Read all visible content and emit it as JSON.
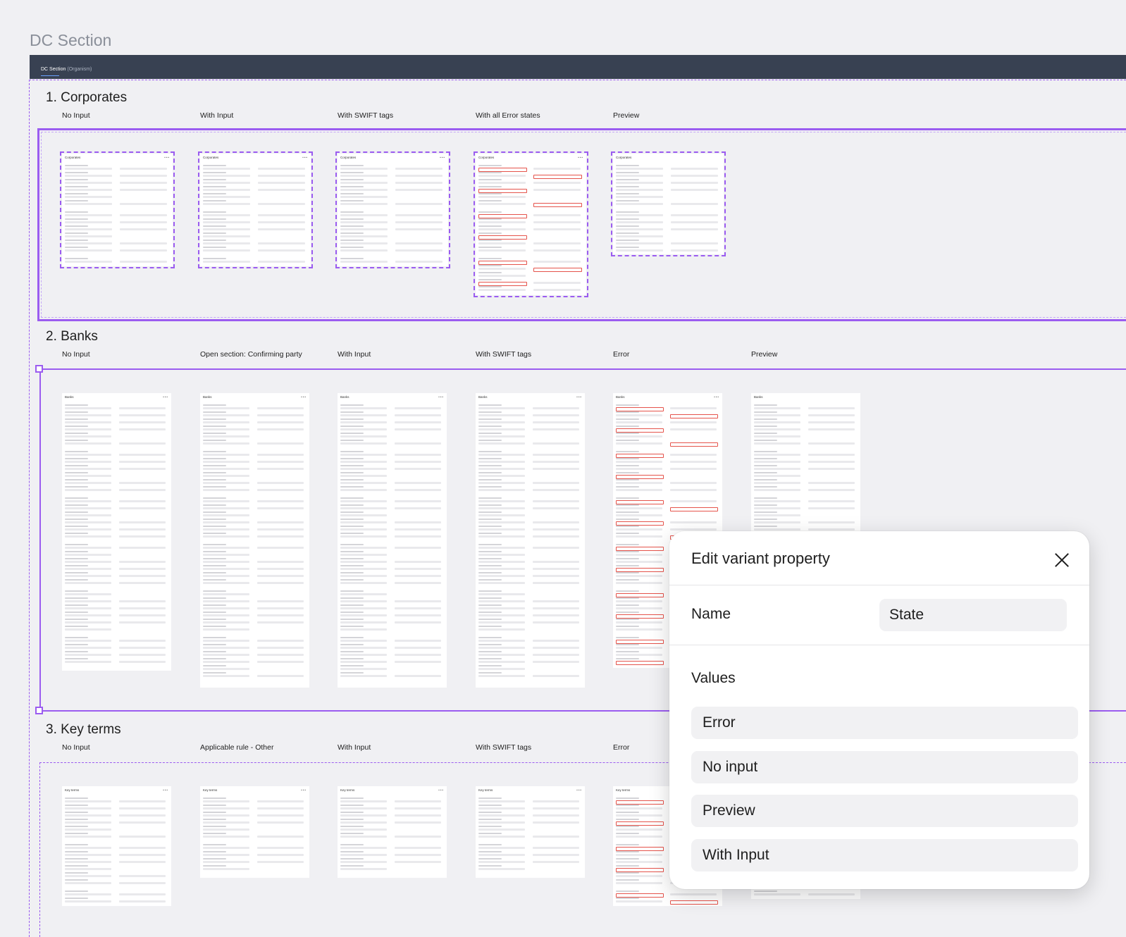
{
  "page": {
    "title": "DC Section"
  },
  "frame": {
    "crumb_main": "DC Section",
    "crumb_sub": "(Organism)"
  },
  "sections": [
    {
      "title": "1.  Corporates",
      "columns": [
        "No Input",
        "With Input",
        "With SWIFT tags",
        "With all Error states",
        "Preview"
      ]
    },
    {
      "title": "2.  Banks",
      "columns": [
        "No Input",
        "Open section: Confirming party",
        "With Input",
        "With SWIFT tags",
        "Error",
        "Preview"
      ]
    },
    {
      "title": "3.  Key terms",
      "columns": [
        "No Input",
        "Applicable rule - Other",
        "With Input",
        "With SWIFT tags",
        "Error"
      ]
    }
  ],
  "card_titles": {
    "corporates": "Corporates",
    "banks": "Banks",
    "key_terms": "Key terms"
  },
  "card_menu": "•••",
  "dialog": {
    "title": "Edit variant property",
    "name_label": "Name",
    "name_value": "State",
    "values_label": "Values",
    "values": [
      "Error",
      "No input",
      "Preview",
      "With Input"
    ]
  },
  "colors": {
    "accent": "#9b5cf0",
    "header": "#384152",
    "error": "#e5534b"
  }
}
